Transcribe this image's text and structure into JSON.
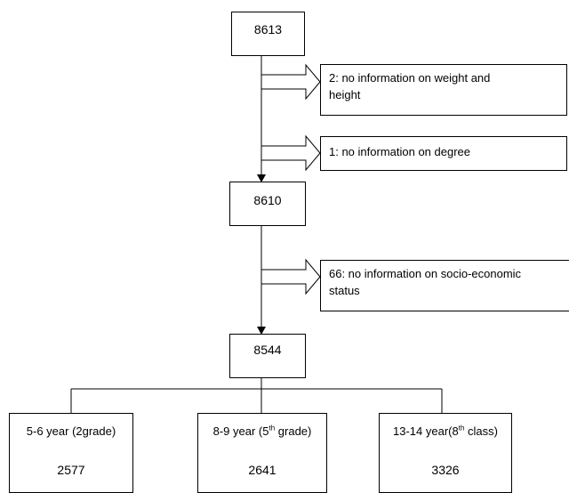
{
  "flow": {
    "start": "8613",
    "exclusion_1": {
      "line1": "2: no information on weight and",
      "line2": "height"
    },
    "exclusion_2": {
      "line1": "1: no information on degree"
    },
    "middle": "8610",
    "exclusion_3": {
      "line1": "66: no information on socio-economic",
      "line2": "status"
    },
    "final": "8544",
    "groups": [
      {
        "label": "5-6  year (2grade)",
        "value": "2577"
      },
      {
        "label_pre": "8-9 year (5",
        "label_sup": "th",
        "label_post": " grade)",
        "value": "2641"
      },
      {
        "label_pre": "13-14 year(8",
        "label_sup": "th",
        "label_post": " class)",
        "value": "3326"
      }
    ]
  }
}
